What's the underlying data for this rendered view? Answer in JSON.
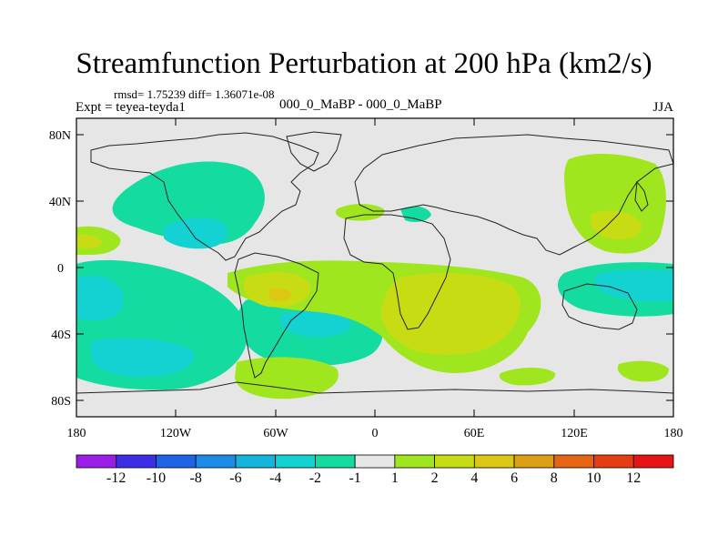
{
  "title": "Streamfunction Perturbation at 200 hPa (km2/s)",
  "stats_line": "rmsd= 1.75239  diff= 1.36071e-08",
  "left_label": "Expt = teyea-teyda1",
  "center_label": "000_0_MaBP - 000_0_MaBP",
  "right_label": "JJA",
  "lat_ticks": [
    "80N",
    "40N",
    "0",
    "40S",
    "80S"
  ],
  "lon_ticks": [
    "180",
    "120W",
    "60W",
    "0",
    "60E",
    "120E",
    "180"
  ],
  "colorbar": {
    "labels": [
      "-12",
      "-10",
      "-8",
      "-6",
      "-4",
      "-2",
      "-1",
      "1",
      "2",
      "4",
      "6",
      "8",
      "10",
      "12"
    ],
    "colors": [
      "#9b1ee6",
      "#3c2ee6",
      "#1e64e6",
      "#1e8ce6",
      "#14b4dc",
      "#14d2d2",
      "#14dca0",
      "#e6e6e6",
      "#a0e61e",
      "#c8dc14",
      "#dcc814",
      "#dca014",
      "#e66414",
      "#e63c14",
      "#e61414"
    ]
  },
  "colors": {
    "land_outline": "#222222",
    "background_field": "#e6e6e6"
  }
}
